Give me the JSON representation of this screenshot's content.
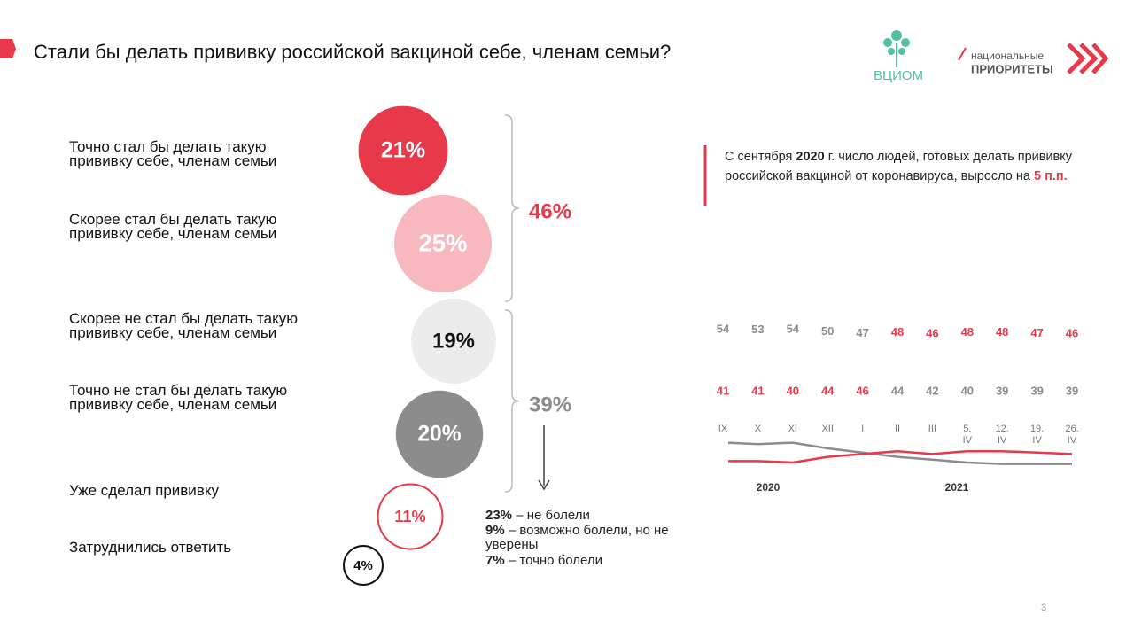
{
  "title": "Стали бы делать прививку российской вакциной себе, членам семьи?",
  "logos": {
    "left": "ВЦИОМ",
    "right_top": "национальные",
    "right_bottom": "ПРИОРИТЕТЫ"
  },
  "callout": [
    "С сентября ",
    "2020",
    " г. число людей, готовых делать прививку российской вакциной от коронавируса, выросло на ",
    "5 п.п."
  ],
  "page_number": "3",
  "chart_data": [
    {
      "type": "bubble",
      "categories": [
        "Точно стал бы делать такую прививку себе, членам семьи",
        "Скорее стал бы делать такую прививку себе, членам семьи",
        "Скорее не стал бы делать такую прививку себе, членам семьи",
        "Точно не стал бы делать такую прививку себе, членам семьи",
        "Уже сделал прививку",
        "Затруднились ответить"
      ],
      "values": [
        21,
        25,
        19,
        20,
        11,
        4
      ],
      "value_labels": [
        "21%",
        "25%",
        "19%",
        "20%",
        "11%",
        "4%"
      ],
      "colors": [
        "#e8394a",
        "#f7b8bf",
        "#ececec",
        "#8c8c8c",
        "#e8394a",
        "#111111"
      ],
      "label_colors": [
        "#ffffff",
        "#ffffff",
        "#111111",
        "#ffffff",
        "#e8394a",
        "#111111"
      ],
      "outline": [
        false,
        false,
        false,
        false,
        true,
        true
      ],
      "groups": [
        {
          "value": 46,
          "value_label": "46%",
          "color": "#e8394a"
        },
        {
          "value": 39,
          "value_label": "39%",
          "color": "#8c8c8c"
        }
      ],
      "notes": [
        {
          "value_label": "23%",
          "text": " – не болели"
        },
        {
          "value_label": "9%",
          "text": " – возможно болели, но не уверены"
        },
        {
          "value_label": "7%",
          "text": " – точно болели"
        }
      ]
    },
    {
      "type": "line",
      "categories": [
        "IX",
        "X",
        "XI",
        "XII",
        "I",
        "II",
        "III",
        "5. IV",
        "12. IV",
        "19. IV",
        "26. IV"
      ],
      "series": [
        {
          "color": "#8c8c8c",
          "values": [
            54,
            53,
            54,
            50,
            47,
            44,
            42,
            40,
            39,
            39,
            39
          ]
        },
        {
          "color": "#e8394a",
          "values": [
            41,
            41,
            40,
            44,
            46,
            48,
            46,
            48,
            48,
            47,
            46
          ]
        }
      ],
      "ylim": [
        0,
        100
      ],
      "annotations": [
        "2020",
        "2021"
      ]
    }
  ]
}
